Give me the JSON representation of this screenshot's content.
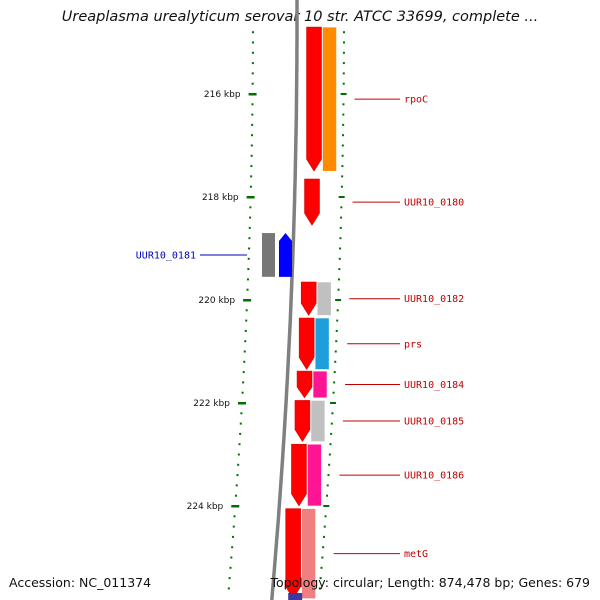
{
  "title": "Ureaplasma urealyticum serovar 10 str. ATCC 33699, complete ...",
  "footer": {
    "accession": "Accession: NC_011374",
    "info": "Topology: circular; Length: 874,478 bp; Genes: 679"
  },
  "colors": {
    "forward_strand": "#ff0000",
    "reverse_strand": "#0000ff",
    "backbone": "#808080",
    "ticks": "#007000",
    "label_forward": "#c00000",
    "label_reverse": "#0000c0",
    "rpoC_cog": "#ff8c00",
    "prs_cog": "#1e9fdc",
    "magenta_cog": "#ff1493",
    "grey_cog": "#c0c0c0",
    "metG_cog": "#f08080"
  },
  "axis": {
    "unit": "kbp",
    "ticks": [
      {
        "label": "216 kbp",
        "kbp": 216
      },
      {
        "label": "218 kbp",
        "kbp": 218
      },
      {
        "label": "220 kbp",
        "kbp": 220
      },
      {
        "label": "222 kbp",
        "kbp": 222
      },
      {
        "label": "224 kbp",
        "kbp": 224
      }
    ]
  },
  "genes": [
    {
      "id": "rpoC",
      "label": "rpoC",
      "strand": "+",
      "start_kbp": 214.7,
      "end_kbp": 217.5,
      "cog_color": "#ff8c00"
    },
    {
      "id": "UUR10_0180",
      "label": "UUR10_0180",
      "strand": "+",
      "start_kbp": 217.65,
      "end_kbp": 218.55,
      "cog_color": null
    },
    {
      "id": "UUR10_0181",
      "label": "UUR10_0181",
      "strand": "-",
      "start_kbp": 218.7,
      "end_kbp": 219.55,
      "cog_color": "#777777"
    },
    {
      "id": "UUR10_0182",
      "label": "UUR10_0182",
      "strand": "+",
      "start_kbp": 219.65,
      "end_kbp": 220.3,
      "cog_color": "#c0c0c0"
    },
    {
      "id": "prs",
      "label": "prs",
      "strand": "+",
      "start_kbp": 220.35,
      "end_kbp": 221.35,
      "cog_color": "#1e9fdc"
    },
    {
      "id": "UUR10_0184",
      "label": "UUR10_0184",
      "strand": "+",
      "start_kbp": 221.38,
      "end_kbp": 221.9,
      "cog_color": "#ff1493"
    },
    {
      "id": "UUR10_0185",
      "label": "UUR10_0185",
      "strand": "+",
      "start_kbp": 221.95,
      "end_kbp": 222.75,
      "cog_color": "#c0c0c0"
    },
    {
      "id": "UUR10_0186",
      "label": "UUR10_0186",
      "strand": "+",
      "start_kbp": 222.8,
      "end_kbp": 224.0,
      "cog_color": "#ff1493"
    },
    {
      "id": "metG",
      "label": "metG",
      "strand": "+",
      "start_kbp": 224.05,
      "end_kbp": 225.8,
      "cog_color": "#f08080"
    }
  ]
}
